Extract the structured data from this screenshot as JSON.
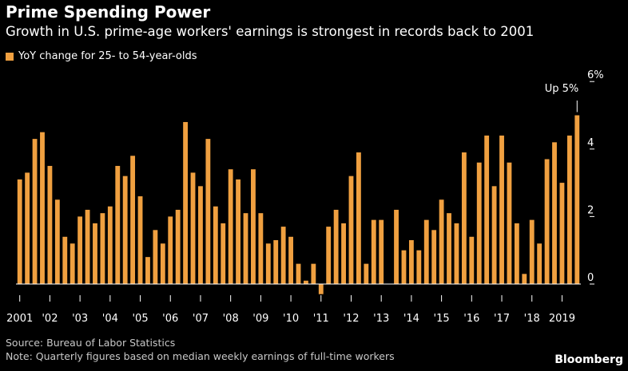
{
  "header": {
    "title": "Prime Spending Power",
    "subtitle": "Growth in U.S. prime-age workers' earnings is strongest in records back to 2001"
  },
  "legend": {
    "label": "YoY change for 25- to 54-year-olds",
    "color": "#f0a040"
  },
  "annotation": {
    "text": "Up 5%"
  },
  "footer": {
    "source": "Source: Bureau of Labor Statistics",
    "note": "Note: Quarterly figures based on median weekly earnings of full-time workers",
    "brand": "Bloomberg"
  },
  "colors": {
    "background": "#000000",
    "bar": "#f0a040",
    "axis": "#ffffff",
    "text": "#ffffff"
  },
  "chart_data": {
    "type": "bar",
    "title": "Prime Spending Power",
    "ylabel": "",
    "xlabel": "",
    "ylim": [
      -0.3,
      6
    ],
    "yticks": [
      {
        "value": 0,
        "label": "0"
      },
      {
        "value": 2,
        "label": "2"
      },
      {
        "value": 4,
        "label": "4"
      },
      {
        "value": 6,
        "label": "6%"
      }
    ],
    "xticks": [
      {
        "index": 0,
        "label": "2001"
      },
      {
        "index": 4,
        "label": "'02"
      },
      {
        "index": 8,
        "label": "'03"
      },
      {
        "index": 12,
        "label": "'04"
      },
      {
        "index": 16,
        "label": "'05"
      },
      {
        "index": 20,
        "label": "'06"
      },
      {
        "index": 24,
        "label": "'07"
      },
      {
        "index": 28,
        "label": "'08"
      },
      {
        "index": 32,
        "label": "'09"
      },
      {
        "index": 36,
        "label": "'10"
      },
      {
        "index": 40,
        "label": "'11"
      },
      {
        "index": 44,
        "label": "'12"
      },
      {
        "index": 48,
        "label": "'13"
      },
      {
        "index": 52,
        "label": "'14"
      },
      {
        "index": 56,
        "label": "'15"
      },
      {
        "index": 60,
        "label": "'16"
      },
      {
        "index": 64,
        "label": "'17"
      },
      {
        "index": 68,
        "label": "'18"
      },
      {
        "index": 72,
        "label": "2019"
      }
    ],
    "values": [
      3.1,
      3.3,
      4.3,
      4.5,
      3.5,
      2.5,
      1.4,
      1.2,
      2.0,
      2.2,
      1.8,
      2.1,
      2.3,
      3.5,
      3.2,
      3.8,
      2.6,
      0.8,
      1.6,
      1.2,
      2.0,
      2.2,
      4.8,
      3.3,
      2.9,
      4.3,
      2.3,
      1.8,
      3.4,
      3.1,
      2.1,
      3.4,
      2.1,
      1.2,
      1.3,
      1.7,
      1.4,
      0.6,
      0.1,
      0.6,
      -0.3,
      1.7,
      2.2,
      1.8,
      3.2,
      3.9,
      0.6,
      1.9,
      1.9,
      0.0,
      2.2,
      1.0,
      1.3,
      1.0,
      1.9,
      1.6,
      2.5,
      2.1,
      1.8,
      3.9,
      1.4,
      3.6,
      4.4,
      2.9,
      4.4,
      3.6,
      1.8,
      0.3,
      1.9,
      1.2,
      3.7,
      4.2,
      3.0,
      4.4,
      5.0
    ]
  }
}
